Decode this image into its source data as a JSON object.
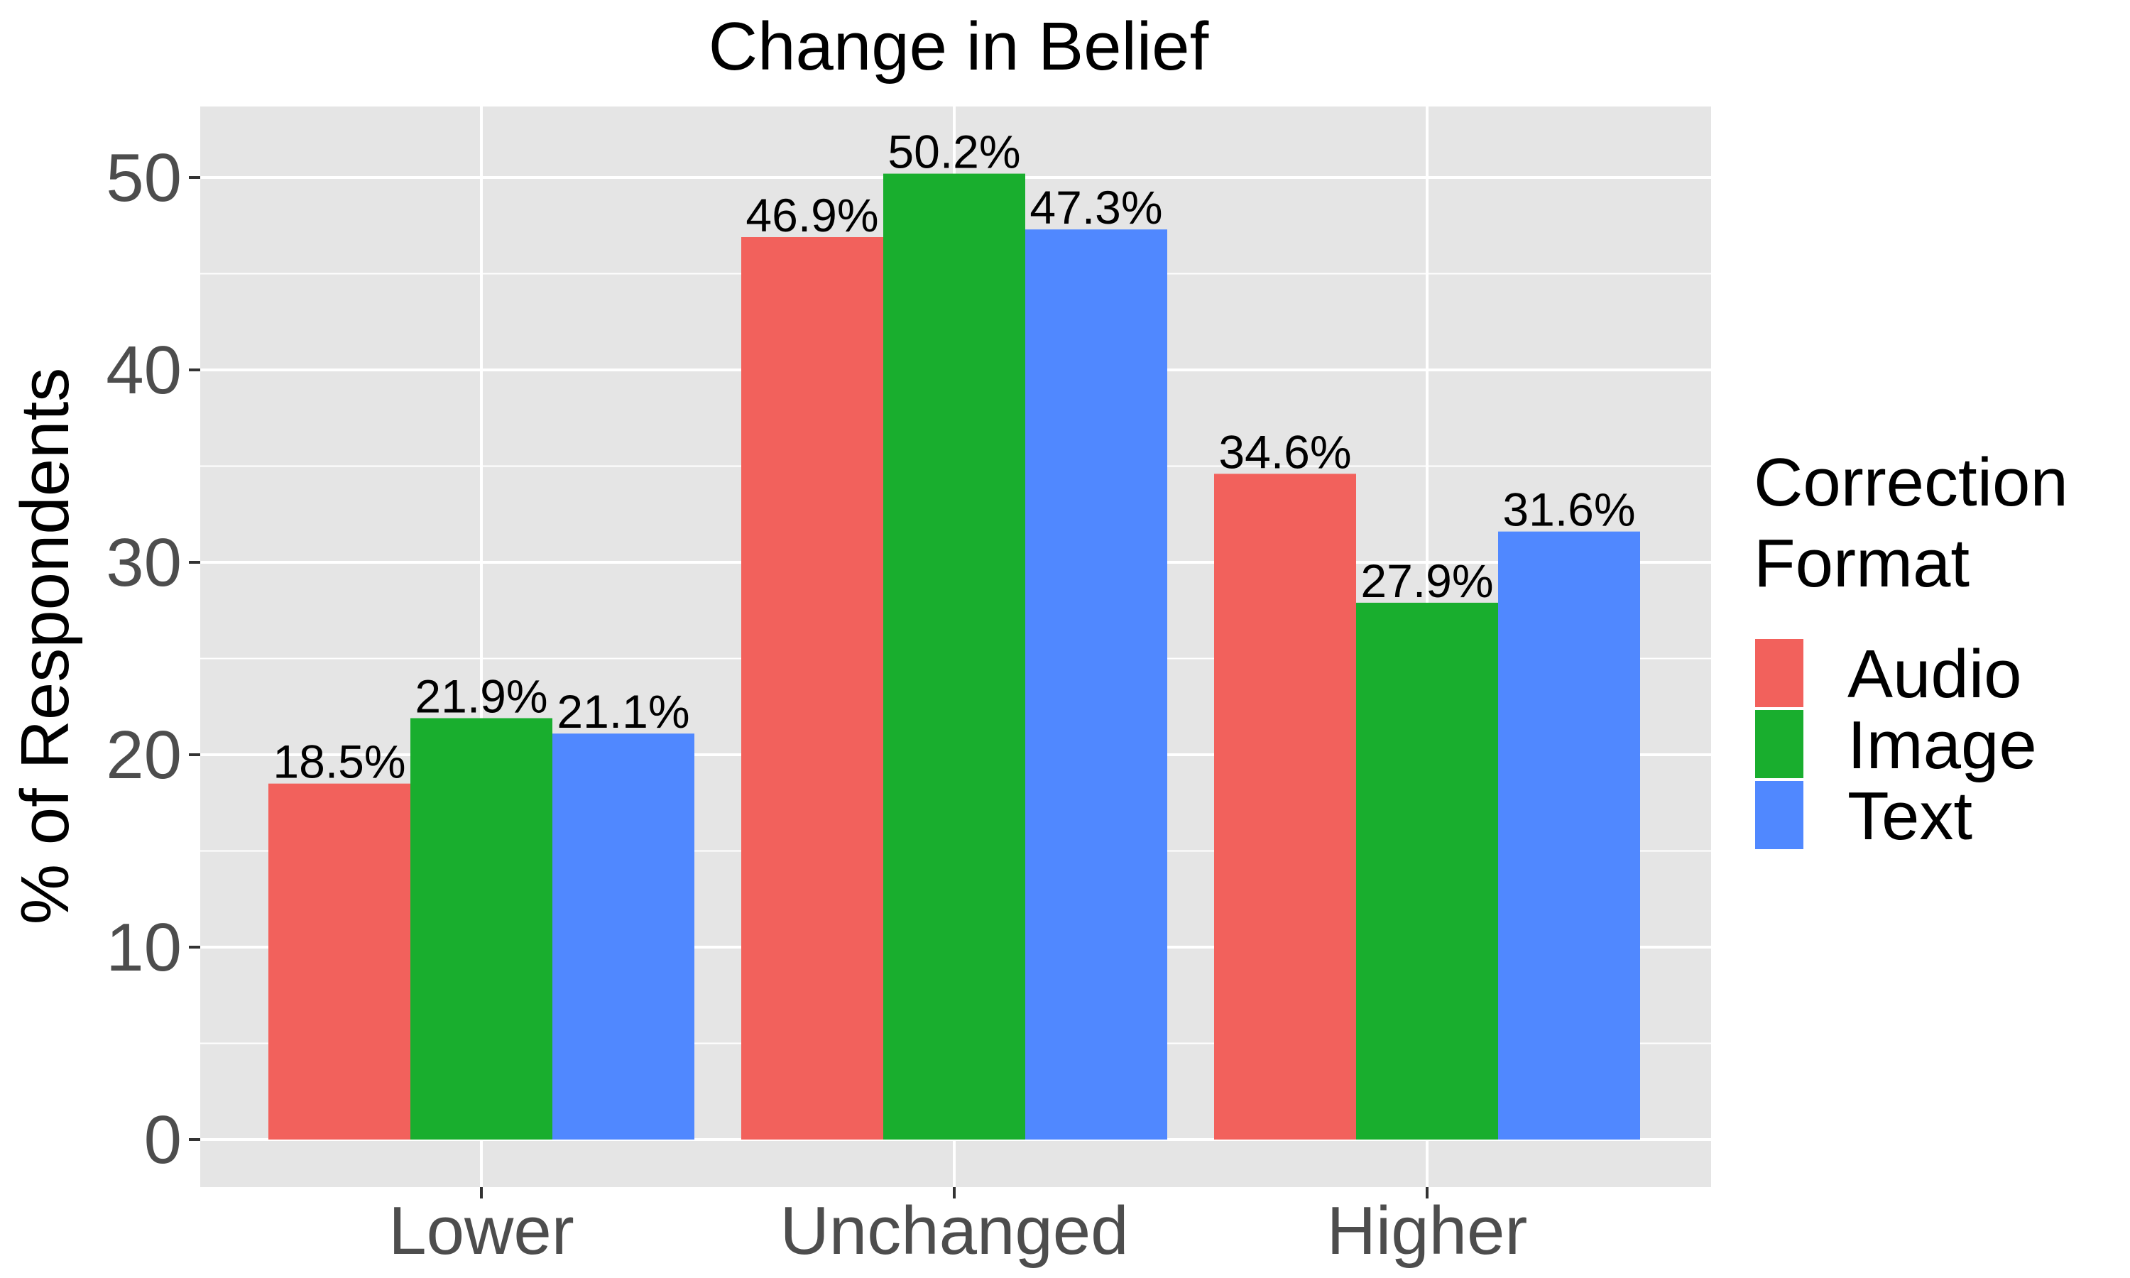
{
  "chart_data": {
    "type": "bar",
    "title": "Change in Belief",
    "xlabel": "",
    "ylabel": "% of Respondents",
    "categories": [
      "Lower",
      "Unchanged",
      "Higher"
    ],
    "ylim": [
      0,
      53
    ],
    "yticks": [
      0,
      10,
      20,
      30,
      40,
      50
    ],
    "grid": true,
    "legend": {
      "title_lines": [
        "Correction",
        "Format"
      ],
      "placement": "right"
    },
    "series": [
      {
        "name": "Audio",
        "color": "#F2615C",
        "values": [
          18.5,
          46.9,
          34.6
        ],
        "labels": [
          "18.5%",
          "46.9%",
          "34.6%"
        ]
      },
      {
        "name": "Image",
        "color": "#19AE2E",
        "values": [
          21.9,
          50.2,
          27.9
        ],
        "labels": [
          "21.9%",
          "50.2%",
          "27.9%"
        ]
      },
      {
        "name": "Text",
        "color": "#5088FF",
        "values": [
          21.1,
          47.3,
          31.6
        ],
        "labels": [
          "21.1%",
          "47.3%",
          "31.6%"
        ]
      }
    ],
    "panel_background": "#E5E5E5",
    "grid_color": "#FFFFFF"
  }
}
